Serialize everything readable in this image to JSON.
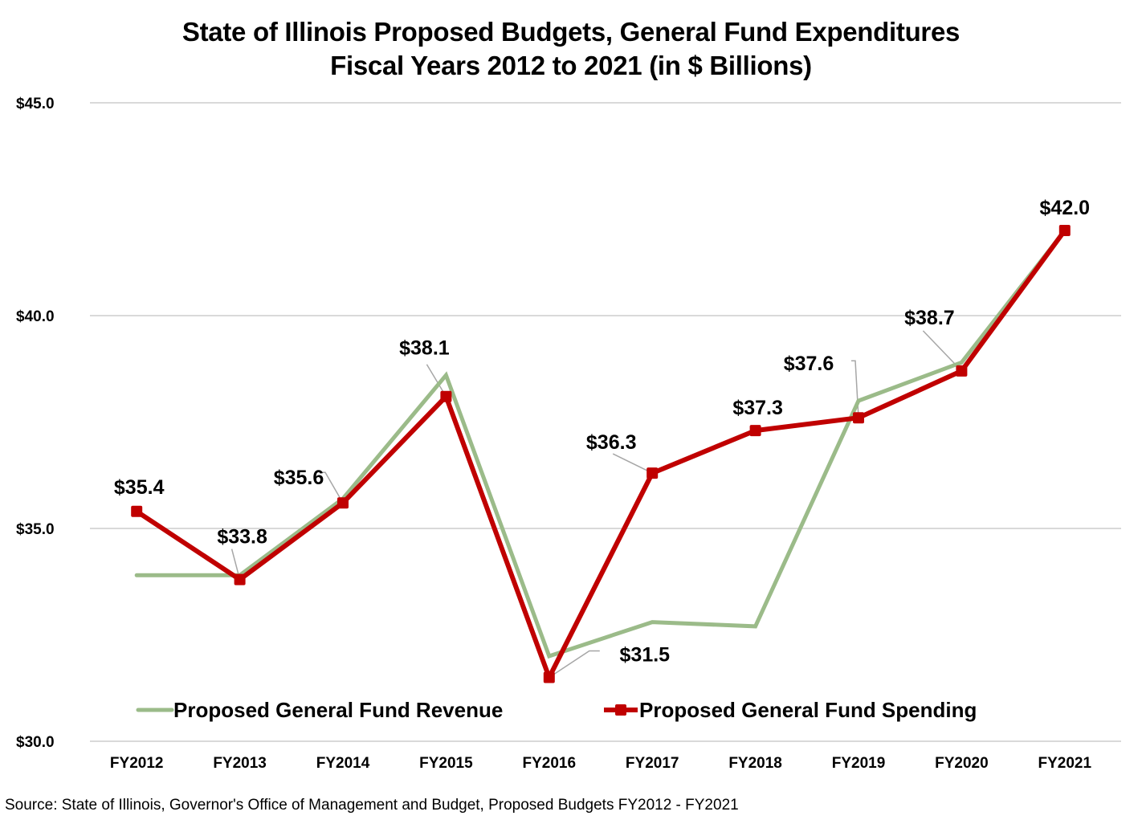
{
  "chart_data": {
    "type": "line",
    "title": "State of Illinois Proposed Budgets, General Fund Expenditures",
    "subtitle": "Fiscal Years 2012 to 2021 (in $ Billions)",
    "xlabel": "",
    "ylabel": "",
    "categories": [
      "FY2012",
      "FY2013",
      "FY2014",
      "FY2015",
      "FY2016",
      "FY2017",
      "FY2018",
      "FY2019",
      "FY2020",
      "FY2021"
    ],
    "ylim": [
      30.0,
      45.0
    ],
    "yticks": [
      30.0,
      35.0,
      40.0,
      45.0
    ],
    "ytick_labels": [
      "$30.0",
      "$35.0",
      "$40.0",
      "$45.0"
    ],
    "grid": true,
    "legend_position": "bottom",
    "series": [
      {
        "name": "Proposed General Fund Revenue",
        "color": "#9bbb89",
        "markers": false,
        "values": [
          33.9,
          33.9,
          35.7,
          38.6,
          32.0,
          32.8,
          32.7,
          38.0,
          38.9,
          42.0
        ]
      },
      {
        "name": "Proposed General Fund Spending",
        "color": "#c00000",
        "markers": true,
        "values": [
          35.4,
          33.8,
          35.6,
          38.1,
          31.5,
          36.3,
          37.3,
          37.6,
          38.7,
          42.0
        ],
        "data_labels": [
          "$35.4",
          "$33.8",
          "$35.6",
          "$38.1",
          "$31.5",
          "$36.3",
          "$37.3",
          "$37.6",
          "$38.7",
          "$42.0"
        ]
      }
    ]
  },
  "source": "Source: State of Illinois, Governor's Office of Management and Budget, Proposed Budgets FY2012 - FY2021"
}
